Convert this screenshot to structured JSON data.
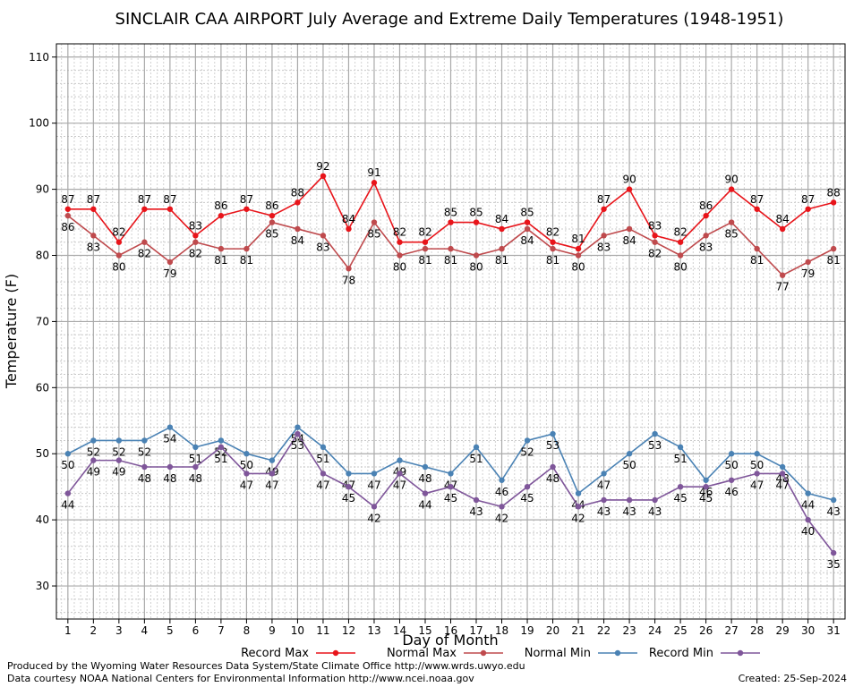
{
  "chart_data": {
    "type": "line",
    "title": "SINCLAIR CAA AIRPORT July Average and Extreme Daily Temperatures (1948-1951)",
    "xlabel": "Day of Month",
    "ylabel": "Temperature (F)",
    "xlim": [
      1,
      31
    ],
    "ylim": [
      25,
      112
    ],
    "yticks": [
      30,
      40,
      50,
      60,
      70,
      80,
      90,
      100,
      110
    ],
    "grid": true,
    "legend_position": "bottom",
    "x": [
      1,
      2,
      3,
      4,
      5,
      6,
      7,
      8,
      9,
      10,
      11,
      12,
      13,
      14,
      15,
      16,
      17,
      18,
      19,
      20,
      21,
      22,
      23,
      24,
      25,
      26,
      27,
      28,
      29,
      30,
      31
    ],
    "series": [
      {
        "name": "Record Max",
        "color": "#e8141a",
        "values": [
          87,
          87,
          82,
          87,
          87,
          83,
          86,
          87,
          86,
          88,
          92,
          84,
          91,
          82,
          82,
          85,
          85,
          84,
          85,
          82,
          81,
          87,
          90,
          83,
          82,
          86,
          90,
          87,
          84,
          87,
          88
        ]
      },
      {
        "name": "Normal Max",
        "color": "#bf4a4d",
        "values": [
          86,
          83,
          80,
          82,
          79,
          82,
          81,
          81,
          85,
          84,
          83,
          78,
          85,
          80,
          81,
          81,
          80,
          81,
          84,
          81,
          80,
          83,
          84,
          82,
          80,
          83,
          85,
          81,
          77,
          79,
          81
        ]
      },
      {
        "name": "Normal Min",
        "color": "#4a82b4",
        "values": [
          50,
          52,
          52,
          52,
          54,
          51,
          52,
          50,
          49,
          54,
          51,
          47,
          47,
          49,
          48,
          47,
          51,
          46,
          52,
          53,
          44,
          47,
          50,
          53,
          51,
          46,
          50,
          50,
          48,
          44,
          43
        ]
      },
      {
        "name": "Record Min",
        "color": "#7f569a",
        "values": [
          44,
          49,
          49,
          48,
          48,
          48,
          51,
          47,
          47,
          53,
          47,
          45,
          42,
          47,
          44,
          45,
          43,
          42,
          45,
          48,
          42,
          43,
          43,
          43,
          45,
          45,
          46,
          47,
          47,
          40,
          35
        ]
      }
    ]
  },
  "footer": {
    "produced_by": "Produced by the Wyoming Water Resources Data System/State Climate Office http://www.wrds.uwyo.edu",
    "courtesy": "Data courtesy NOAA National Centers for Environmental Information http://www.ncei.noaa.gov",
    "created": "Created:  25-Sep-2024"
  }
}
